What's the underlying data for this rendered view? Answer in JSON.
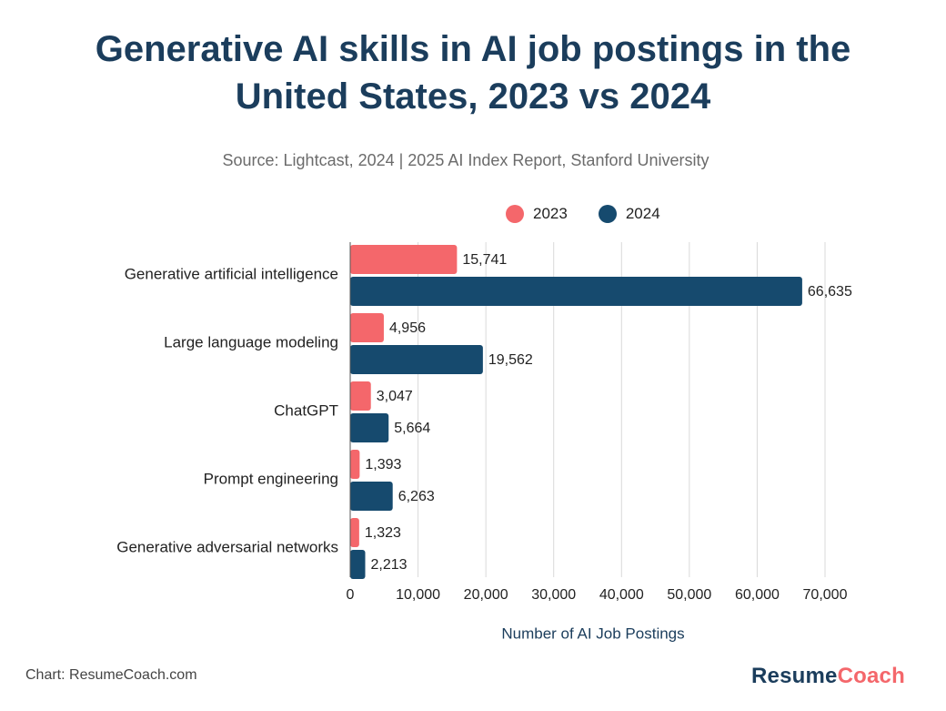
{
  "header": {
    "title_line1": "Generative AI skills in AI job postings in the",
    "title_line2": "United States, 2023 vs 2024",
    "subtitle": "Source: Lightcast, 2024 | 2025 AI Index Report, Stanford University"
  },
  "legend": {
    "items": [
      {
        "label": "2023",
        "color": "#f4676b"
      },
      {
        "label": "2024",
        "color": "#164a6e"
      }
    ]
  },
  "chart_data": {
    "type": "bar",
    "orientation": "horizontal",
    "categories": [
      "Generative artificial intelligence",
      "Large language modeling",
      "ChatGPT",
      "Prompt engineering",
      "Generative adversarial networks"
    ],
    "series": [
      {
        "name": "2023",
        "color": "#f4676b",
        "values": [
          15741,
          4956,
          3047,
          1393,
          1323
        ],
        "labels": [
          "15,741",
          "4,956",
          "3,047",
          "1,393",
          "1,323"
        ]
      },
      {
        "name": "2024",
        "color": "#164a6e",
        "values": [
          66635,
          19562,
          5664,
          6263,
          2213
        ],
        "labels": [
          "66,635",
          "19,562",
          "5,664",
          "6,263",
          "2,213"
        ]
      }
    ],
    "xlabel": "Number of AI Job Postings",
    "xlim": [
      0,
      70000
    ],
    "xticks": [
      0,
      10000,
      20000,
      30000,
      40000,
      50000,
      60000,
      70000
    ],
    "xtick_labels": [
      "0",
      "10,000",
      "20,000",
      "30,000",
      "40,000",
      "50,000",
      "60,000",
      "70,000"
    ],
    "grid": "vertical",
    "legend_position": "top"
  },
  "footer": {
    "credit": "Chart: ResumeCoach.com",
    "brand_part1": "Resume",
    "brand_part2": "Coach"
  }
}
